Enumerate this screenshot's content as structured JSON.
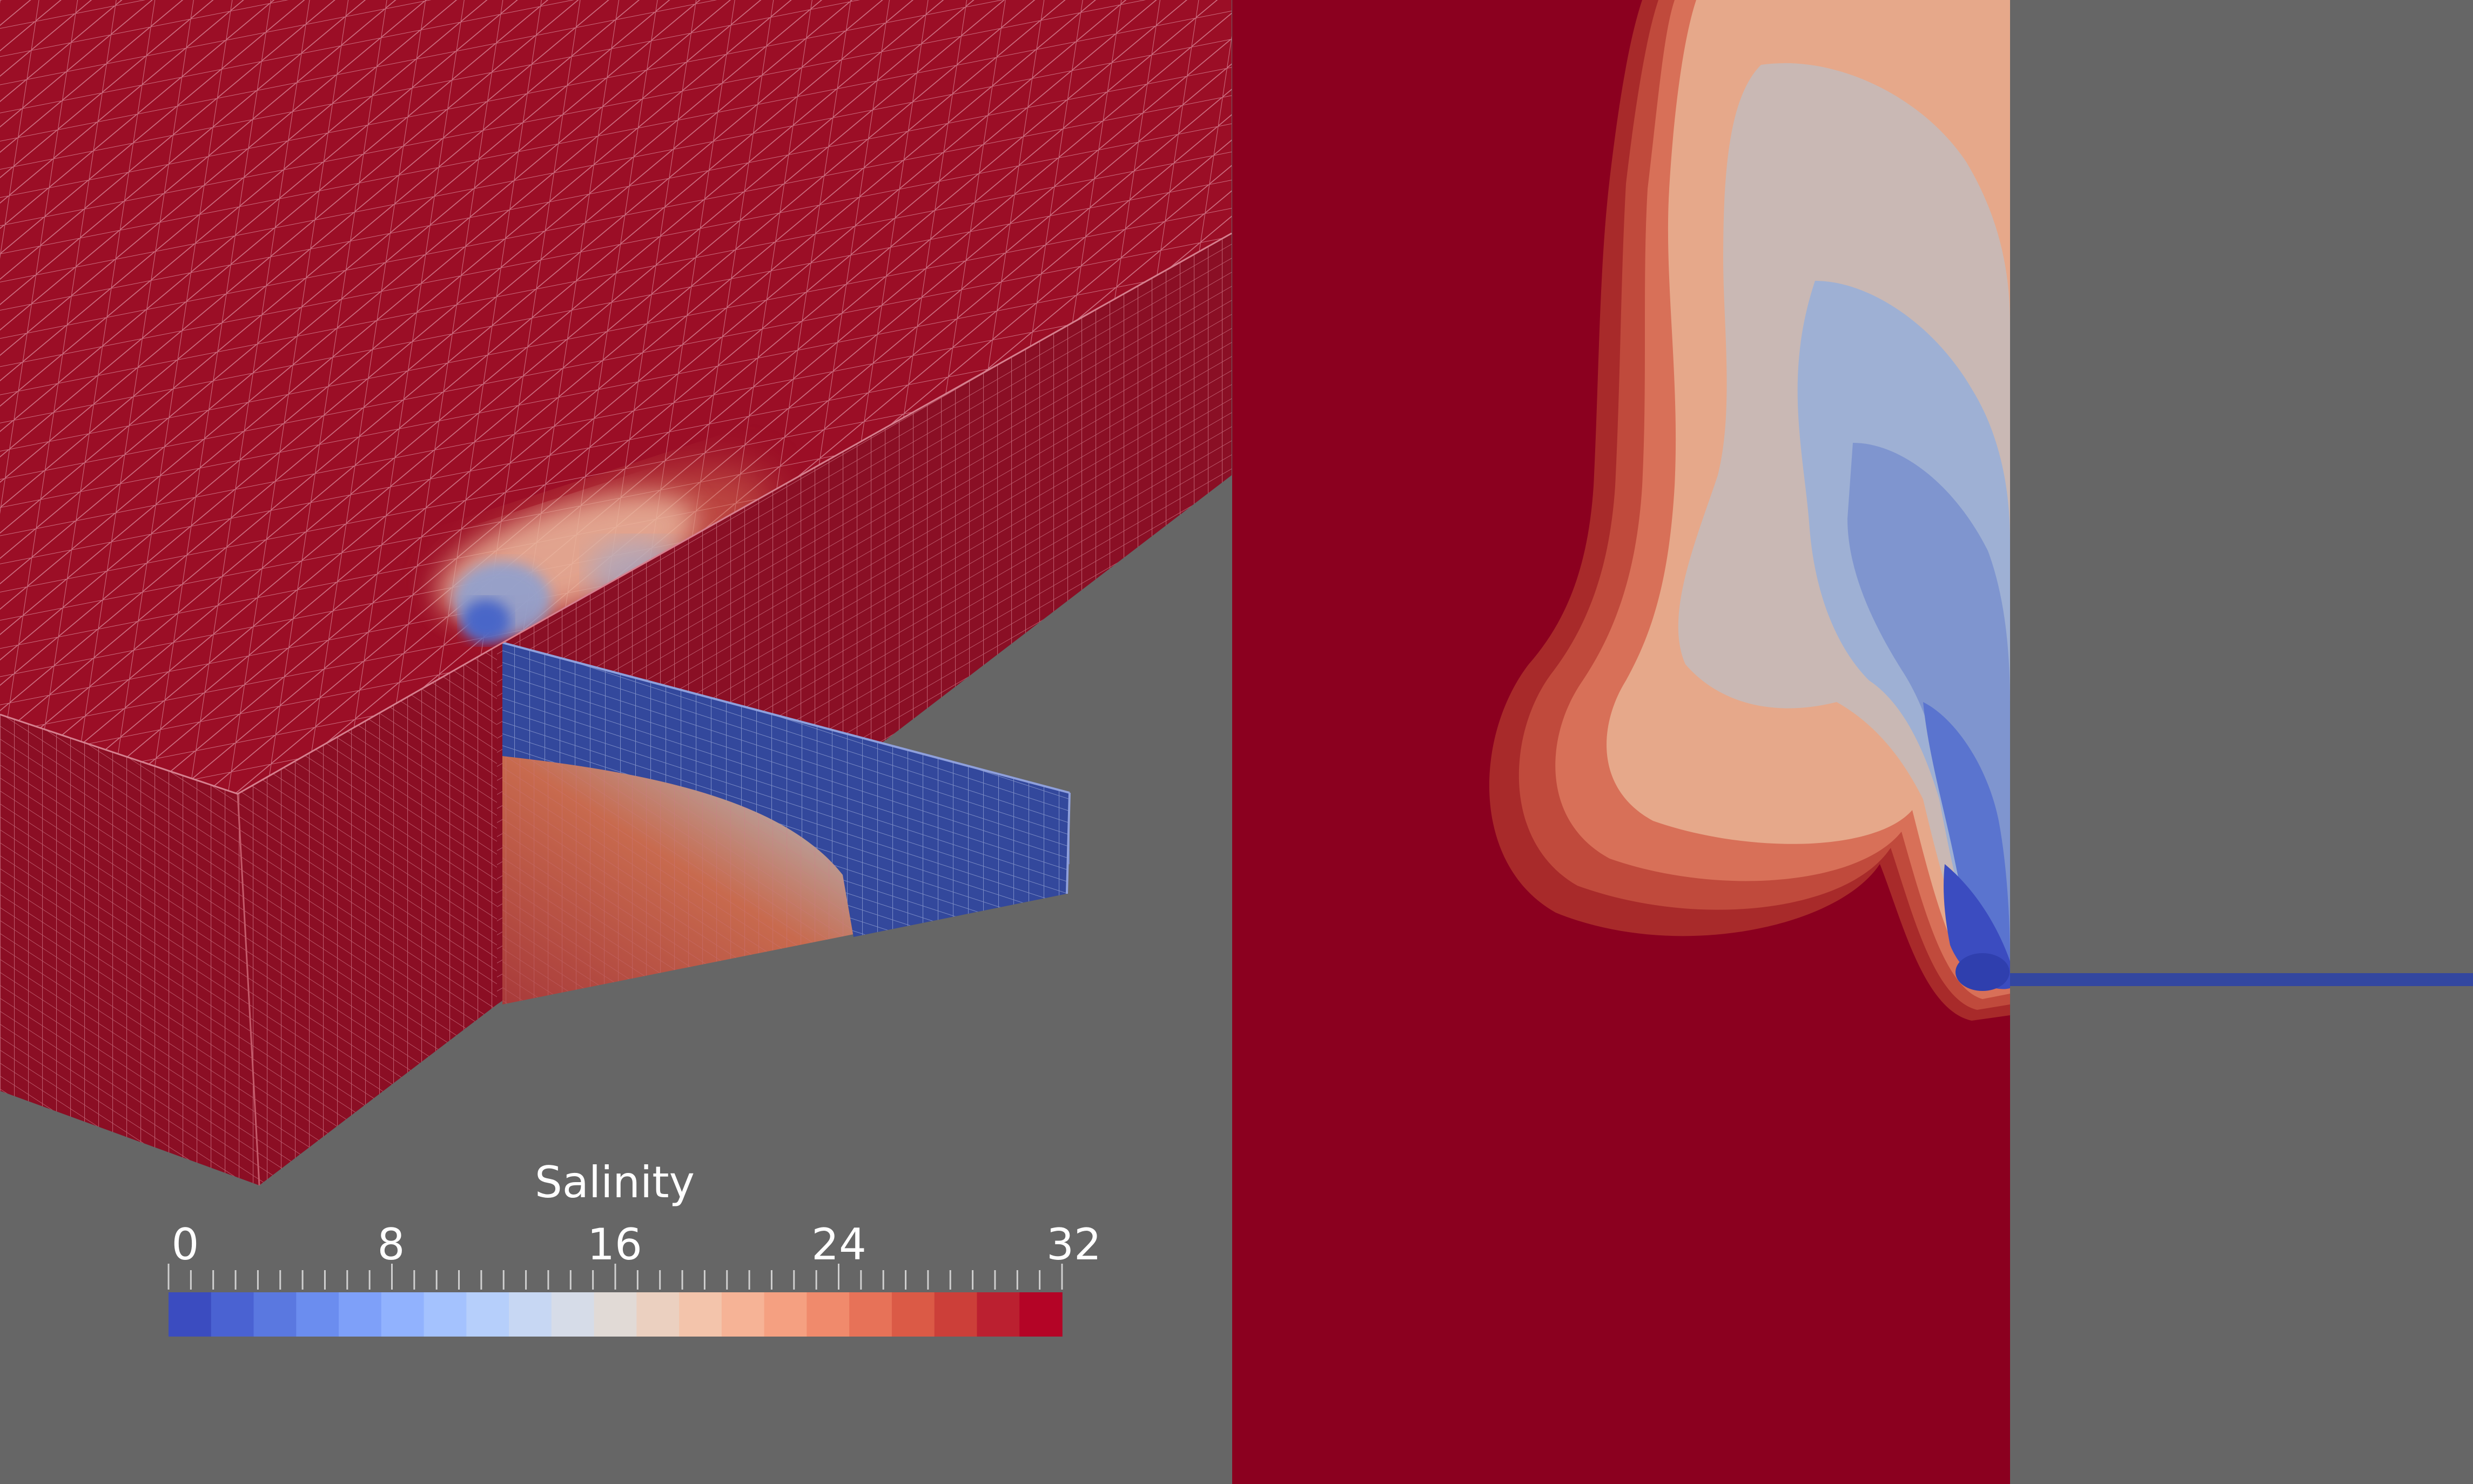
{
  "colorbar": {
    "title": "Salinity",
    "tick_labels": [
      "0",
      "8",
      "16",
      "24",
      "32"
    ],
    "range": [
      0,
      32
    ],
    "colors": [
      "#3b4cc0",
      "#4a62d2",
      "#5a78e0",
      "#6b8def",
      "#7ea0f9",
      "#91b2fe",
      "#a4c2fe",
      "#b6cffb",
      "#c7d7f3",
      "#d6dce8",
      "#e1dad6",
      "#ebd0c0",
      "#f3c4ab",
      "#f6b396",
      "#f5a081",
      "#f08a6c",
      "#e77258",
      "#db5a46",
      "#cc3f39",
      "#bb2030",
      "#b40426"
    ]
  },
  "colors": {
    "background": "#666666",
    "salt_water": "#8b0020",
    "mesh_line": "#d98a9a",
    "fresh_channel": "#3347a0"
  },
  "views": {
    "left": "3d-mesh-perspective",
    "right": "top-down-plume"
  }
}
